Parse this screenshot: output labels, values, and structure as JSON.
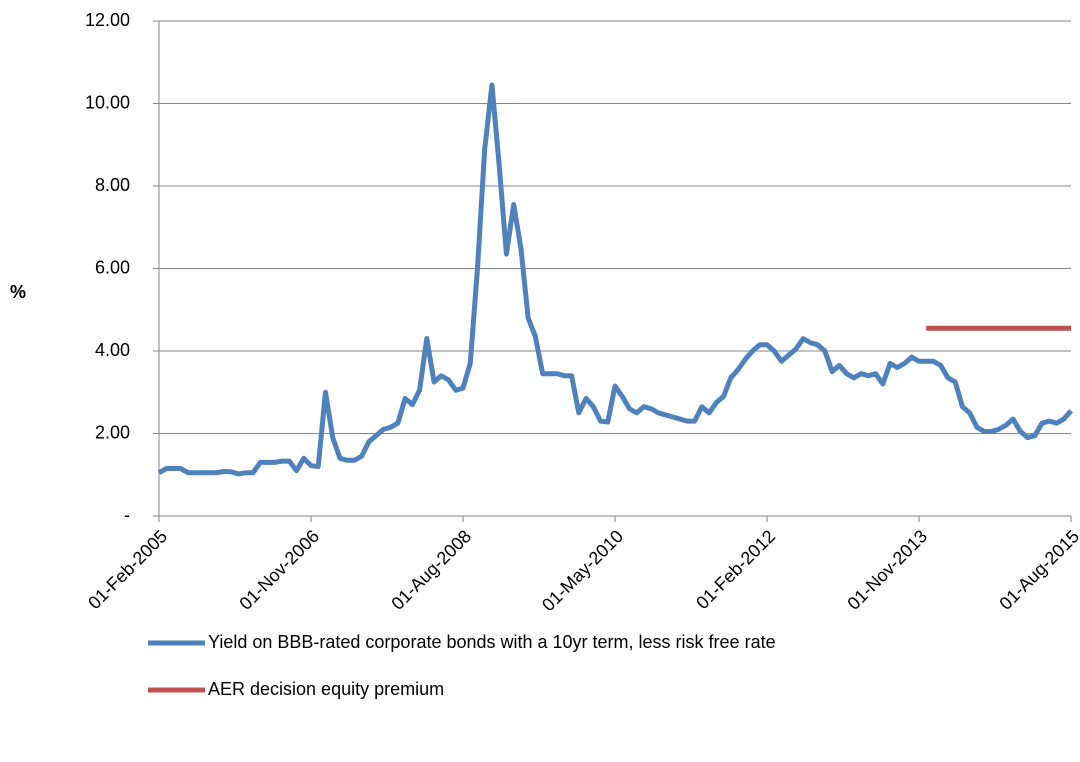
{
  "chart_data": {
    "type": "line",
    "y_label": "%",
    "categories": [
      "01-Feb-2005",
      null,
      null,
      null,
      null,
      null,
      null,
      null,
      null,
      null,
      null,
      null,
      null,
      null,
      null,
      null,
      null,
      null,
      null,
      null,
      null,
      "01-Nov-2006",
      null,
      null,
      null,
      null,
      null,
      null,
      null,
      null,
      null,
      null,
      null,
      null,
      null,
      null,
      null,
      null,
      null,
      null,
      null,
      null,
      "01-Aug-2008",
      null,
      null,
      null,
      null,
      null,
      null,
      null,
      null,
      null,
      null,
      null,
      null,
      null,
      null,
      null,
      null,
      null,
      null,
      null,
      null,
      "01-May-2010",
      null,
      null,
      null,
      null,
      null,
      null,
      null,
      null,
      null,
      null,
      null,
      null,
      null,
      null,
      null,
      null,
      null,
      null,
      null,
      null,
      "01-Feb-2012",
      null,
      null,
      null,
      null,
      null,
      null,
      null,
      null,
      null,
      null,
      null,
      null,
      null,
      null,
      null,
      null,
      null,
      null,
      null,
      null,
      "01-Nov-2013",
      null,
      null,
      null,
      null,
      null,
      null,
      null,
      null,
      null,
      null,
      null,
      null,
      null,
      null,
      null,
      null,
      null,
      null,
      null,
      null,
      "01-Aug-2015"
    ],
    "series": [
      {
        "name": "Yield on BBB-rated corporate bonds with a 10yr term, less risk free rate",
        "color": "#4f81bd",
        "values": [
          1.05,
          1.15,
          1.15,
          1.15,
          1.05,
          1.05,
          1.05,
          1.05,
          1.05,
          1.08,
          1.07,
          1.02,
          1.05,
          1.05,
          1.3,
          1.3,
          1.3,
          1.33,
          1.33,
          1.1,
          1.4,
          1.22,
          1.2,
          3.0,
          1.9,
          1.4,
          1.35,
          1.35,
          1.45,
          1.8,
          1.95,
          2.1,
          2.15,
          2.25,
          2.85,
          2.7,
          3.05,
          4.3,
          3.25,
          3.4,
          3.3,
          3.05,
          3.1,
          3.7,
          6.0,
          8.9,
          10.45,
          8.5,
          6.35,
          7.55,
          6.5,
          4.8,
          4.35,
          3.45,
          3.45,
          3.45,
          3.4,
          3.4,
          2.5,
          2.85,
          2.65,
          2.3,
          2.28,
          3.15,
          2.9,
          2.6,
          2.5,
          2.65,
          2.6,
          2.5,
          2.45,
          2.4,
          2.35,
          2.3,
          2.3,
          2.65,
          2.5,
          2.75,
          2.9,
          3.35,
          3.55,
          3.8,
          4.0,
          4.15,
          4.15,
          4.0,
          3.75,
          3.9,
          4.05,
          4.3,
          4.2,
          4.15,
          4.0,
          3.5,
          3.65,
          3.45,
          3.35,
          3.45,
          3.4,
          3.45,
          3.2,
          3.7,
          3.6,
          3.7,
          3.85,
          3.75,
          3.75,
          3.75,
          3.65,
          3.35,
          3.25,
          2.65,
          2.5,
          2.15,
          2.05,
          2.05,
          2.1,
          2.2,
          2.35,
          2.05,
          1.9,
          1.95,
          2.25,
          2.3,
          2.25,
          2.35,
          2.55
        ]
      },
      {
        "name": "AER decision equity premium",
        "color": "#c0504d",
        "values": [
          null,
          null,
          null,
          null,
          null,
          null,
          null,
          null,
          null,
          null,
          null,
          null,
          null,
          null,
          null,
          null,
          null,
          null,
          null,
          null,
          null,
          null,
          null,
          null,
          null,
          null,
          null,
          null,
          null,
          null,
          null,
          null,
          null,
          null,
          null,
          null,
          null,
          null,
          null,
          null,
          null,
          null,
          null,
          null,
          null,
          null,
          null,
          null,
          null,
          null,
          null,
          null,
          null,
          null,
          null,
          null,
          null,
          null,
          null,
          null,
          null,
          null,
          null,
          null,
          null,
          null,
          null,
          null,
          null,
          null,
          null,
          null,
          null,
          null,
          null,
          null,
          null,
          null,
          null,
          null,
          null,
          null,
          null,
          null,
          null,
          null,
          null,
          null,
          null,
          null,
          null,
          null,
          null,
          null,
          null,
          null,
          null,
          null,
          null,
          null,
          null,
          null,
          null,
          null,
          null,
          null,
          4.55,
          4.55,
          4.55,
          4.55,
          4.55,
          4.55,
          4.55,
          4.55,
          4.55,
          4.55,
          4.55,
          4.55,
          4.55,
          4.55,
          4.55,
          4.55,
          4.55,
          4.55,
          4.55,
          4.55,
          4.55
        ]
      }
    ],
    "ylim": [
      0,
      12
    ],
    "yticks": [
      {
        "value": 0,
        "label": "-"
      },
      {
        "value": 2,
        "label": "2.00"
      },
      {
        "value": 4,
        "label": "4.00"
      },
      {
        "value": 6,
        "label": "6.00"
      },
      {
        "value": 8,
        "label": "8.00"
      },
      {
        "value": 10,
        "label": "10.00"
      },
      {
        "value": 12,
        "label": "12.00"
      }
    ],
    "grid": true
  }
}
